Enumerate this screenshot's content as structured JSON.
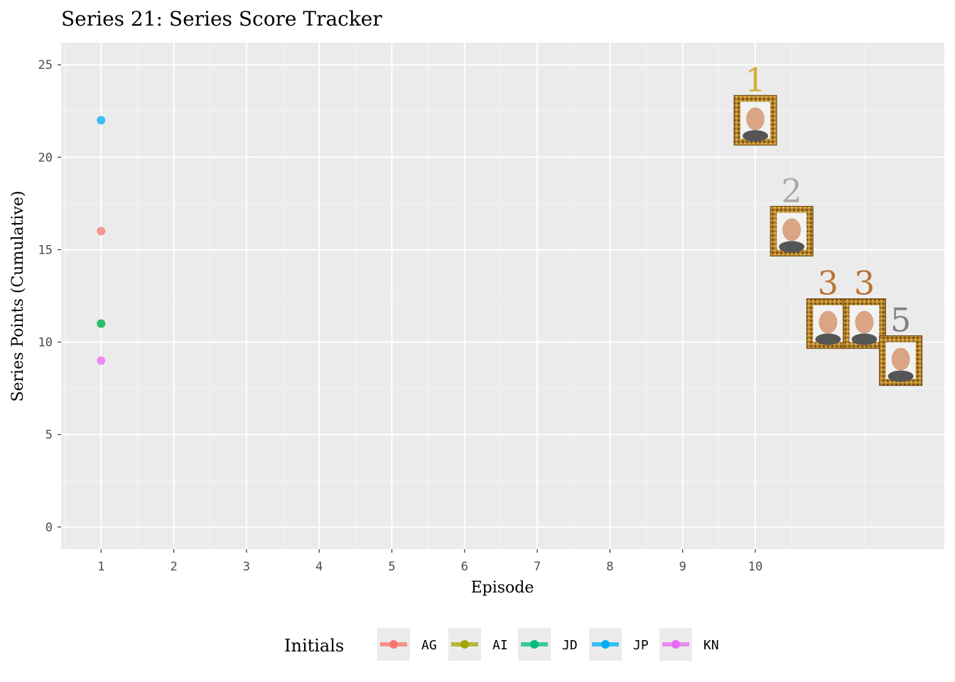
{
  "chart_data": {
    "type": "scatter",
    "title": "Series 21: Series Score Tracker",
    "xlabel": "Episode",
    "ylabel": "Series Points (Cumulative)",
    "x_ticks": [
      1,
      2,
      3,
      4,
      5,
      6,
      7,
      8,
      9,
      10
    ],
    "y_ticks": [
      0,
      5,
      10,
      15,
      20,
      25
    ],
    "xlim": [
      0.45,
      12.6
    ],
    "ylim": [
      -1.2,
      26.2
    ],
    "grid": true,
    "legend_title": "Initials",
    "legend_position": "bottom",
    "series": [
      {
        "name": "AG",
        "color": "#F8766D",
        "points": [
          {
            "x": 1,
            "y": 16
          }
        ]
      },
      {
        "name": "AI",
        "color": "#A3A500",
        "points": [
          {
            "x": 1,
            "y": 11
          }
        ]
      },
      {
        "name": "JD",
        "color": "#00BF7D",
        "points": [
          {
            "x": 1,
            "y": 11
          }
        ]
      },
      {
        "name": "JP",
        "color": "#00B0F6",
        "points": [
          {
            "x": 1,
            "y": 22
          }
        ]
      },
      {
        "name": "KN",
        "color": "#E76BF3",
        "points": [
          {
            "x": 1,
            "y": 9
          }
        ]
      }
    ],
    "rankings": [
      {
        "rank": "1",
        "x": 10.0,
        "y": 22,
        "color": "#D4AF37",
        "portrait": "contestant-portrait-1"
      },
      {
        "rank": "2",
        "x": 10.5,
        "y": 16,
        "color": "#A9A9A9",
        "portrait": "contestant-portrait-2"
      },
      {
        "rank": "3",
        "x": 11.0,
        "y": 11,
        "color": "#B87333",
        "portrait": "contestant-portrait-3a"
      },
      {
        "rank": "3",
        "x": 11.5,
        "y": 11,
        "color": "#B87333",
        "portrait": "contestant-portrait-3b"
      },
      {
        "rank": "5",
        "x": 12.0,
        "y": 9,
        "color": "#808080",
        "portrait": "contestant-portrait-5"
      }
    ]
  }
}
